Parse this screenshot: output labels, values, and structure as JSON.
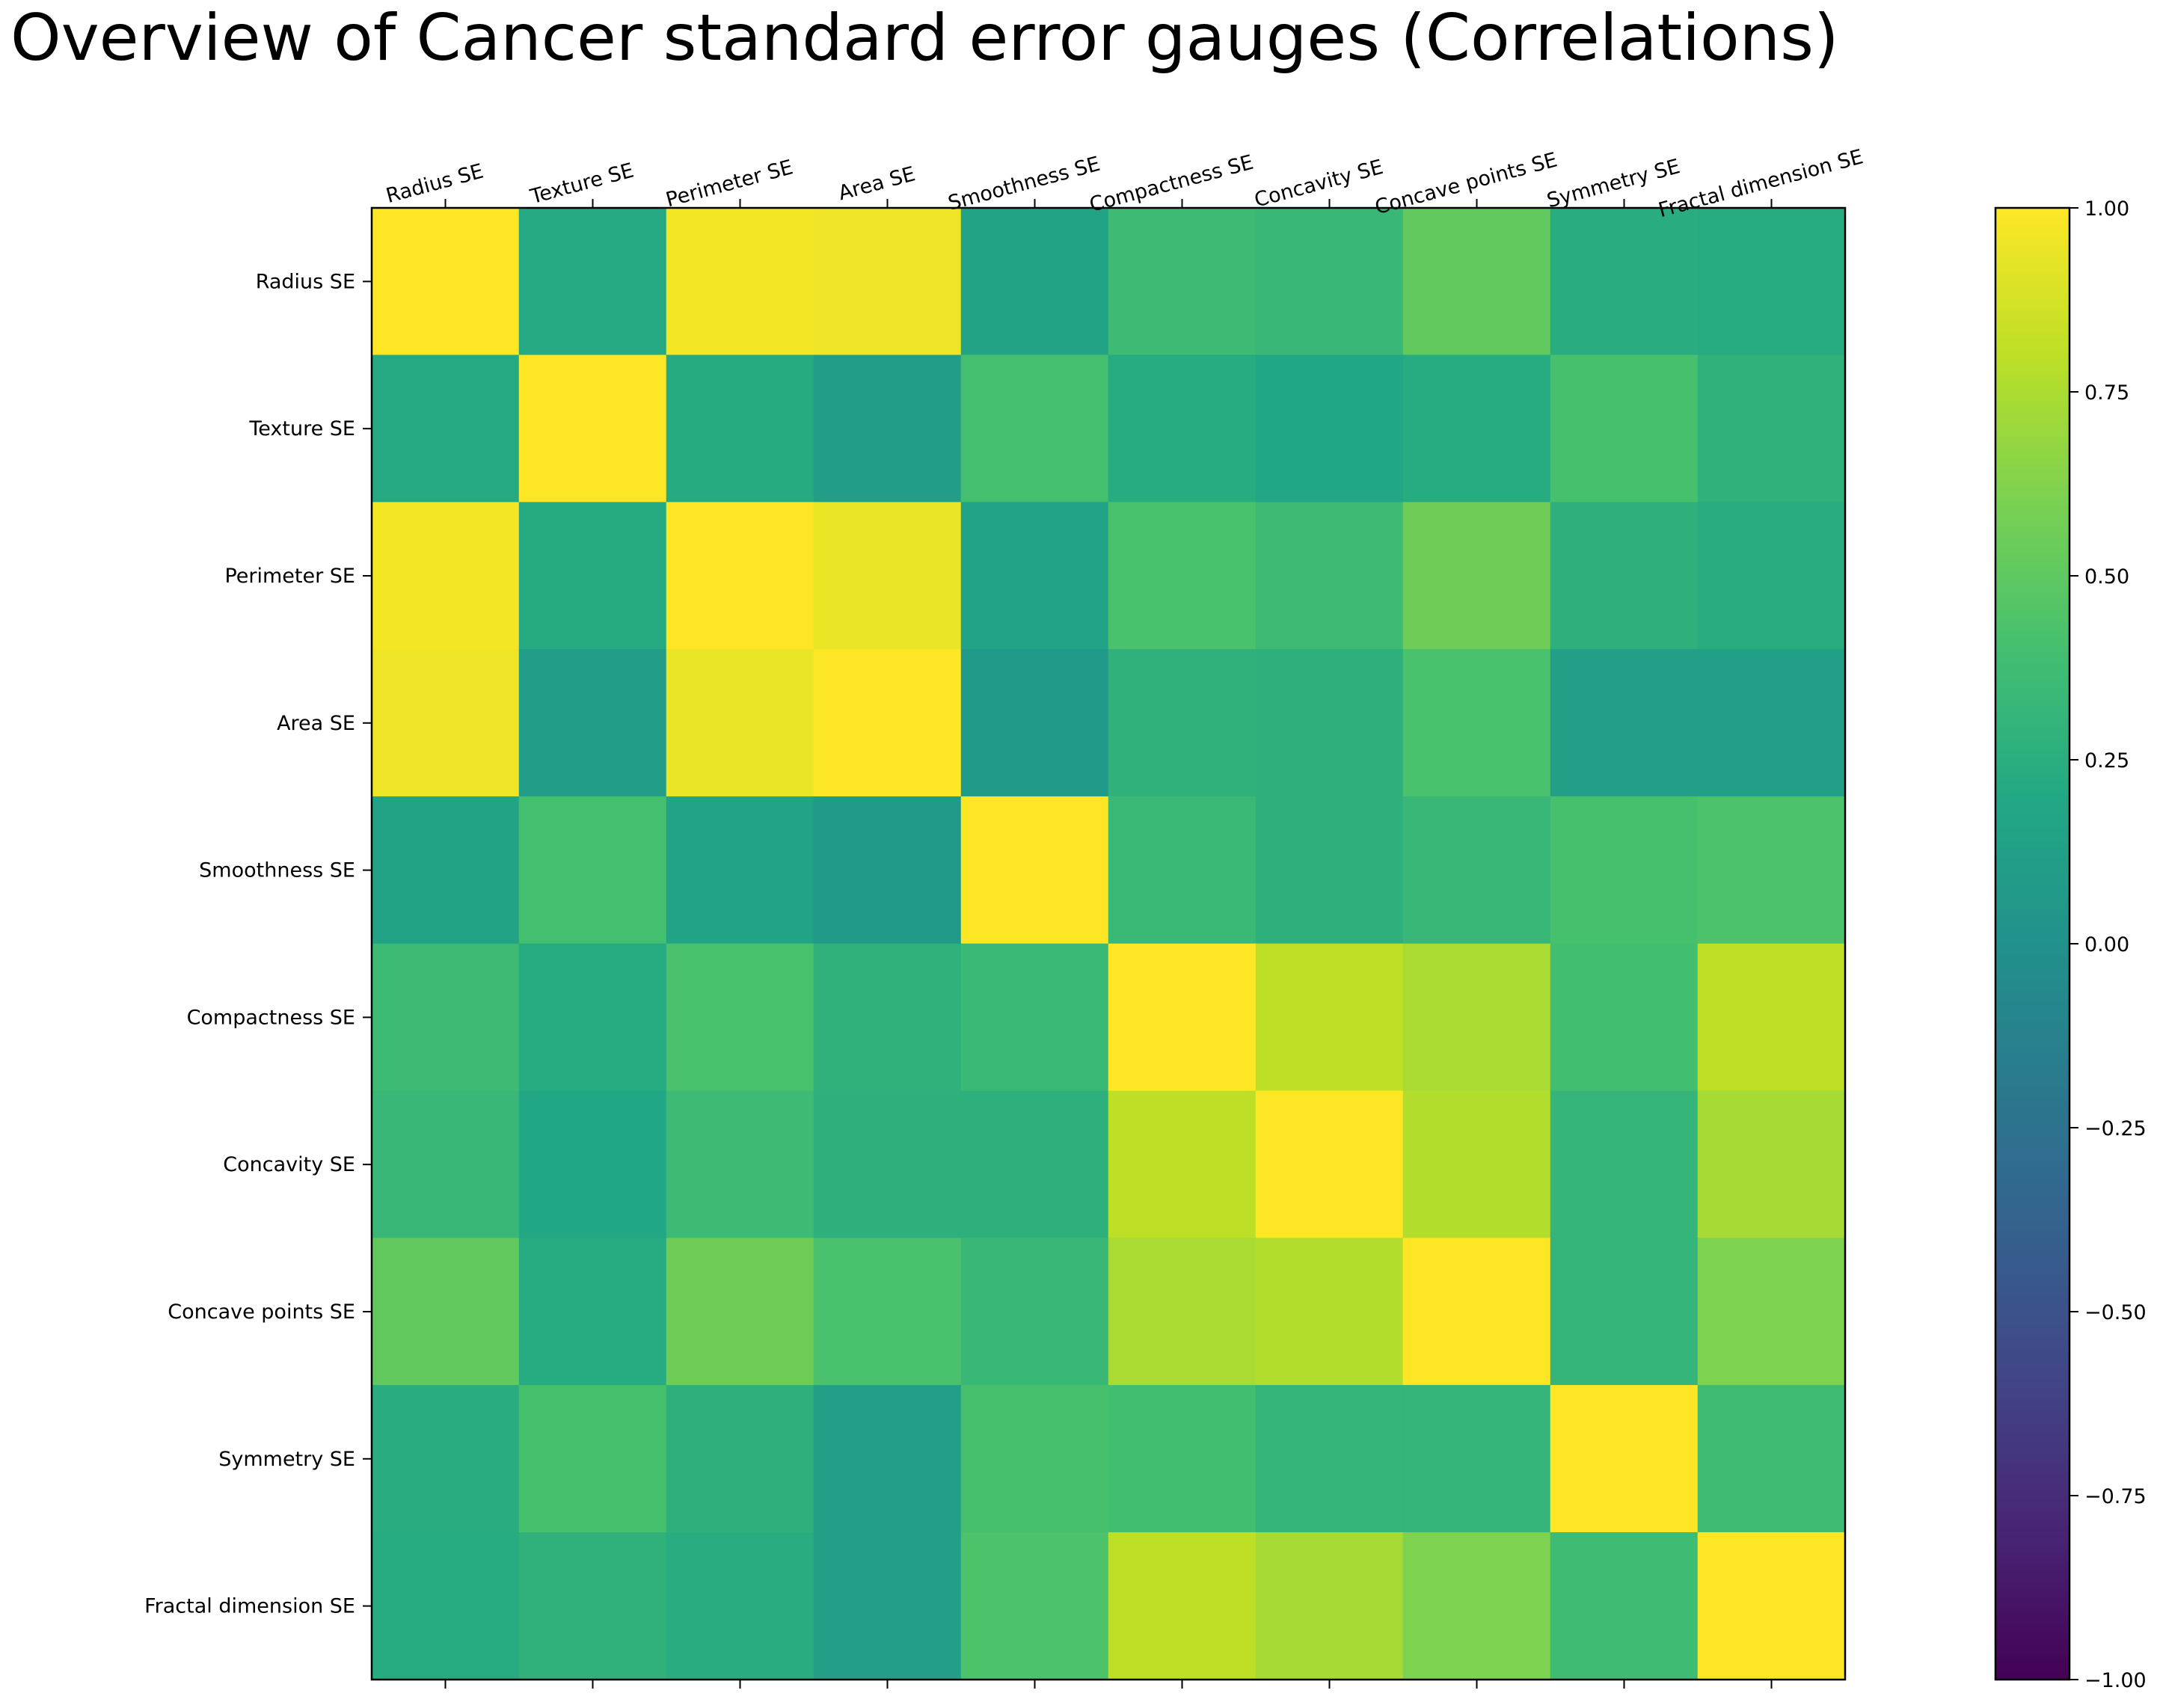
{
  "colors": {
    "colormap": "viridis",
    "frame": "#000000",
    "background": "#ffffff"
  },
  "chart_data": {
    "type": "heatmap",
    "title": "Overview of Cancer standard error gauges (Correlations)",
    "x_tick_labels": [
      "Radius SE",
      "Texture SE",
      "Perimeter SE",
      "Area SE",
      "Smoothness SE",
      "Compactness SE",
      "Concavity SE",
      "Concave points SE",
      "Symmetry SE",
      "Fractal dimension SE"
    ],
    "y_tick_labels": [
      "Radius SE",
      "Texture SE",
      "Perimeter SE",
      "Area SE",
      "Smoothness SE",
      "Compactness SE",
      "Concavity SE",
      "Concave points SE",
      "Symmetry SE",
      "Fractal dimension SE"
    ],
    "x_tick_position": "top",
    "matrix": [
      [
        1.0,
        0.21,
        0.97,
        0.95,
        0.16,
        0.36,
        0.33,
        0.51,
        0.24,
        0.23
      ],
      [
        0.21,
        1.0,
        0.22,
        0.11,
        0.4,
        0.23,
        0.19,
        0.23,
        0.41,
        0.28
      ],
      [
        0.97,
        0.22,
        1.0,
        0.94,
        0.15,
        0.42,
        0.36,
        0.56,
        0.27,
        0.24
      ],
      [
        0.95,
        0.11,
        0.94,
        1.0,
        0.08,
        0.28,
        0.27,
        0.42,
        0.13,
        0.13
      ],
      [
        0.16,
        0.4,
        0.15,
        0.08,
        1.0,
        0.34,
        0.27,
        0.33,
        0.41,
        0.43
      ],
      [
        0.36,
        0.23,
        0.42,
        0.28,
        0.34,
        1.0,
        0.8,
        0.74,
        0.39,
        0.8
      ],
      [
        0.33,
        0.19,
        0.36,
        0.27,
        0.27,
        0.8,
        1.0,
        0.77,
        0.31,
        0.73
      ],
      [
        0.51,
        0.23,
        0.56,
        0.42,
        0.33,
        0.74,
        0.77,
        1.0,
        0.31,
        0.61
      ],
      [
        0.24,
        0.41,
        0.27,
        0.13,
        0.41,
        0.39,
        0.31,
        0.31,
        1.0,
        0.37
      ],
      [
        0.23,
        0.28,
        0.24,
        0.13,
        0.43,
        0.8,
        0.73,
        0.61,
        0.37,
        1.0
      ]
    ],
    "vmin": -1.0,
    "vmax": 1.0,
    "colorbar_ticks": [
      1.0,
      0.75,
      0.5,
      0.25,
      0.0,
      -0.25,
      -0.5,
      -0.75,
      -1.0
    ],
    "colorbar_tick_labels": [
      "1.00",
      "0.75",
      "0.50",
      "0.25",
      "0.00",
      "−0.25",
      "−0.50",
      "−0.75",
      "−1.00"
    ]
  }
}
